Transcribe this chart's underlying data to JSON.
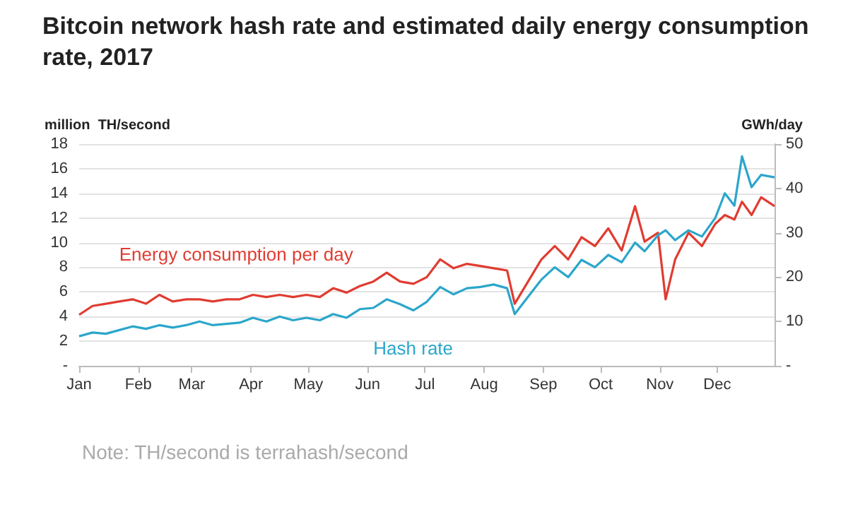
{
  "chart_data": {
    "type": "line",
    "title": "Bitcoin network hash rate and estimated daily energy consumption rate, 2017",
    "ylabel": "million  TH/second",
    "y2label": "GWh/day",
    "annotations": [
      "Note: TH/second is terrahash/second"
    ],
    "x": [
      "2017-01-01",
      "2017-01-08",
      "2017-01-15",
      "2017-01-22",
      "2017-01-29",
      "2017-02-05",
      "2017-02-12",
      "2017-02-19",
      "2017-02-26",
      "2017-03-05",
      "2017-03-12",
      "2017-03-19",
      "2017-03-26",
      "2017-04-02",
      "2017-04-09",
      "2017-04-16",
      "2017-04-23",
      "2017-04-30",
      "2017-05-07",
      "2017-05-14",
      "2017-05-21",
      "2017-05-28",
      "2017-06-04",
      "2017-06-11",
      "2017-06-18",
      "2017-06-25",
      "2017-07-02",
      "2017-07-09",
      "2017-07-16",
      "2017-07-23",
      "2017-07-30",
      "2017-08-06",
      "2017-08-13",
      "2017-08-17",
      "2017-08-24",
      "2017-08-31",
      "2017-09-07",
      "2017-09-14",
      "2017-09-21",
      "2017-09-28",
      "2017-10-05",
      "2017-10-12",
      "2017-10-19",
      "2017-10-24",
      "2017-10-31",
      "2017-11-04",
      "2017-11-09",
      "2017-11-16",
      "2017-11-23",
      "2017-11-30",
      "2017-12-05",
      "2017-12-10",
      "2017-12-14",
      "2017-12-19",
      "2017-12-24",
      "2017-12-31"
    ],
    "series": [
      {
        "name": "Energy consumption per day",
        "color": "#e03c31",
        "axis": "y2",
        "values": [
          11.5,
          13.5,
          14,
          14.5,
          15,
          14,
          16,
          14.5,
          15,
          15,
          14.5,
          15,
          15,
          16,
          15.5,
          16,
          15.5,
          16,
          15.5,
          17.5,
          16.5,
          18,
          19,
          21,
          19,
          18.5,
          20,
          24,
          22,
          23,
          22.5,
          22,
          21.5,
          14,
          19,
          24,
          27,
          24,
          29,
          27,
          31,
          26,
          36,
          28,
          30,
          15,
          24,
          30,
          27,
          32,
          34,
          33,
          37,
          34,
          38,
          36
        ]
      },
      {
        "name": "Hash rate",
        "color": "#2ba6cb",
        "values": [
          2.4,
          2.7,
          2.6,
          2.9,
          3.2,
          3.0,
          3.3,
          3.1,
          3.3,
          3.6,
          3.3,
          3.4,
          3.5,
          3.9,
          3.6,
          4.0,
          3.7,
          3.9,
          3.7,
          4.2,
          3.9,
          4.6,
          4.7,
          5.4,
          5.0,
          4.5,
          5.2,
          6.4,
          5.8,
          6.3,
          6.4,
          6.6,
          6.3,
          4.2,
          5.6,
          7.0,
          8.0,
          7.2,
          8.6,
          8.0,
          9.0,
          8.4,
          10.0,
          9.3,
          10.6,
          11.0,
          10.2,
          11.0,
          10.5,
          12.0,
          14.0,
          13.0,
          17.0,
          14.5,
          15.5,
          15.3
        ]
      }
    ],
    "xlim": [
      "2017-01-01",
      "2017-12-31"
    ],
    "xticks": [
      {
        "value": "2017-01-01",
        "label": "Jan"
      },
      {
        "value": "2017-02-01",
        "label": "Feb"
      },
      {
        "value": "2017-03-01",
        "label": "Mar"
      },
      {
        "value": "2017-04-01",
        "label": "Apr"
      },
      {
        "value": "2017-05-01",
        "label": "May"
      },
      {
        "value": "2017-06-01",
        "label": "Jun"
      },
      {
        "value": "2017-07-01",
        "label": "Jul"
      },
      {
        "value": "2017-08-01",
        "label": "Aug"
      },
      {
        "value": "2017-09-01",
        "label": "Sep"
      },
      {
        "value": "2017-10-01",
        "label": "Oct"
      },
      {
        "value": "2017-11-01",
        "label": "Nov"
      },
      {
        "value": "2017-12-01",
        "label": "Dec"
      }
    ],
    "ylim": [
      0,
      18
    ],
    "yticks": [
      {
        "value": 0,
        "label": "-"
      },
      2,
      4,
      6,
      8,
      10,
      12,
      14,
      16,
      18
    ],
    "y2lim": [
      0,
      50
    ],
    "y2ticks": [
      {
        "value": 0,
        "label": "-"
      },
      10,
      20,
      30,
      40,
      50
    ],
    "grid": "y",
    "legend": false,
    "marker": "none"
  }
}
